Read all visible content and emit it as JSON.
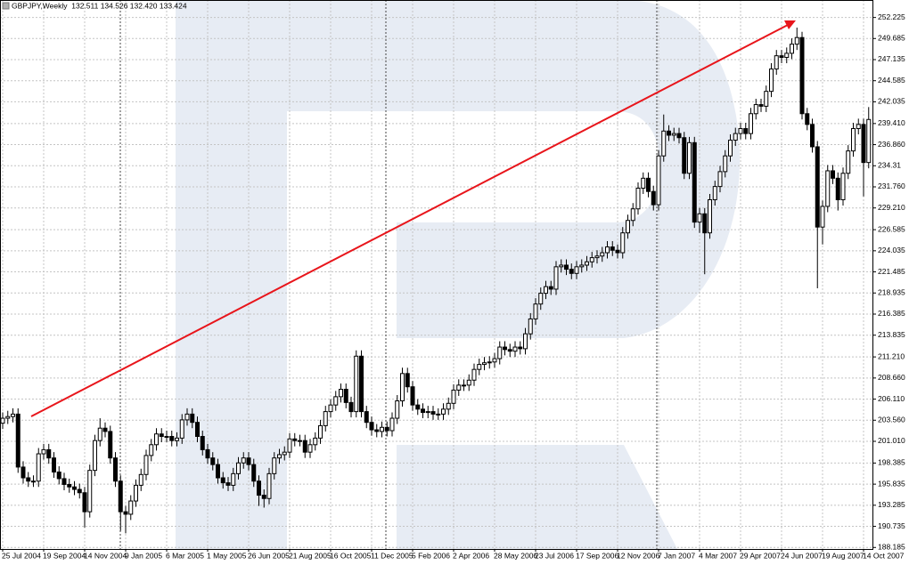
{
  "chart_data": {
    "type": "candlestick",
    "title": "GBPJPY,Weekly  132.511 134.526 132.420 133.424",
    "categories": [
      "25 Jul 2004",
      null,
      null,
      null,
      null,
      null,
      null,
      null,
      "19 Sep 2004",
      null,
      null,
      null,
      null,
      null,
      null,
      null,
      "14 Nov 2004",
      null,
      null,
      null,
      null,
      null,
      null,
      null,
      "9 Jan 2005",
      null,
      null,
      null,
      null,
      null,
      null,
      null,
      "6 Mar 2005",
      null,
      null,
      null,
      null,
      null,
      null,
      null,
      "1 May 2005",
      null,
      null,
      null,
      null,
      null,
      null,
      null,
      "26 Jun 2005",
      null,
      null,
      null,
      null,
      null,
      null,
      null,
      "21 Aug 2005",
      null,
      null,
      null,
      null,
      null,
      null,
      null,
      "16 Oct 2005",
      null,
      null,
      null,
      null,
      null,
      null,
      null,
      "11 Dec 2005",
      null,
      null,
      null,
      null,
      null,
      null,
      null,
      "5 Feb 2006",
      null,
      null,
      null,
      null,
      null,
      null,
      null,
      "2 Apr 2006",
      null,
      null,
      null,
      null,
      null,
      null,
      null,
      "28 May 2006",
      null,
      null,
      null,
      null,
      null,
      null,
      null,
      "23 Jul 2006",
      null,
      null,
      null,
      null,
      null,
      null,
      null,
      "17 Sep 2006",
      null,
      null,
      null,
      null,
      null,
      null,
      null,
      "12 Nov 2006",
      null,
      null,
      null,
      null,
      null,
      null,
      null,
      "7 Jan 2007",
      null,
      null,
      null,
      null,
      null,
      null,
      null,
      "4 Mar 2007",
      null,
      null,
      null,
      null,
      null,
      null,
      null,
      "29 Apr 2007",
      null,
      null,
      null,
      null,
      null,
      null,
      null,
      "24 Jun 2007",
      null,
      null,
      null,
      null,
      null,
      null,
      null,
      "19 Aug 2007",
      null,
      null,
      null,
      null,
      null,
      null,
      null,
      "14 Oct 2007",
      null
    ],
    "open": [
      203.2,
      203.8,
      204.0,
      204.3,
      197.9,
      196.6,
      196.2,
      196.2,
      199.5,
      200.0,
      199.0,
      197.3,
      196.5,
      195.8,
      195.5,
      195.2,
      194.8,
      192.5,
      197.5,
      201.1,
      202.6,
      202.2,
      199.0,
      196.2,
      192.5,
      192.2,
      193.8,
      195.7,
      197.0,
      199.3,
      200.6,
      201.9,
      201.6,
      201.6,
      201.1,
      201.4,
      203.6,
      204.3,
      203.3,
      201.6,
      200.0,
      199.0,
      198.2,
      196.6,
      196.0,
      195.7,
      197.1,
      198.4,
      199.0,
      198.2,
      196.2,
      194.5,
      194.1,
      197.1,
      199.0,
      199.4,
      199.7,
      201.3,
      201.1,
      201.1,
      199.7,
      200.6,
      201.4,
      202.9,
      204.6,
      205.4,
      206.4,
      207.3,
      205.7,
      204.6,
      211.3,
      204.6,
      203.3,
      202.4,
      202.2,
      202.7,
      202.3,
      203.8,
      205.9,
      209.2,
      207.6,
      205.4,
      204.9,
      204.5,
      204.6,
      204.3,
      204.3,
      204.9,
      205.6,
      207.2,
      207.8,
      207.8,
      208.4,
      209.7,
      210.3,
      210.5,
      210.6,
      211.0,
      212.4,
      212.1,
      211.9,
      212.4,
      212.2,
      214.0,
      215.8,
      217.6,
      218.9,
      219.7,
      219.4,
      222.1,
      222.3,
      221.8,
      221.3,
      222.1,
      222.3,
      222.7,
      223.2,
      223.4,
      223.8,
      224.5,
      224.1,
      223.8,
      226.2,
      227.7,
      229.1,
      231.6,
      232.8,
      231.2,
      229.6,
      235.5,
      238.5,
      238.0,
      238.2,
      237.7,
      233.4,
      237.1,
      227.5,
      228.5,
      226.2,
      230.2,
      231.8,
      233.6,
      235.5,
      237.4,
      238.2,
      238.8,
      238.2,
      240.6,
      241.7,
      241.5,
      243.3,
      246.0,
      247.6,
      247.4,
      247.9,
      249.0,
      249.8,
      240.6,
      239.3,
      236.6,
      226.9,
      229.4,
      233.7,
      232.8,
      230.2,
      233.4,
      236.1,
      238.8,
      239.3,
      234.7
    ],
    "high": [
      204.5,
      204.7,
      205.0,
      205.0,
      198.6,
      197.3,
      196.9,
      200.2,
      200.7,
      200.7,
      199.7,
      198.0,
      197.2,
      196.5,
      196.2,
      195.9,
      195.5,
      198.2,
      201.8,
      203.8,
      203.3,
      202.9,
      199.7,
      196.9,
      193.2,
      194.5,
      196.4,
      197.7,
      200.0,
      201.3,
      202.6,
      202.6,
      202.3,
      202.3,
      202.1,
      204.3,
      205.0,
      205.0,
      204.0,
      202.3,
      200.7,
      199.7,
      198.9,
      197.3,
      196.7,
      197.8,
      199.1,
      199.7,
      199.7,
      198.9,
      196.9,
      195.2,
      197.8,
      199.7,
      200.1,
      200.4,
      202.0,
      202.0,
      201.8,
      201.8,
      201.3,
      202.1,
      203.6,
      205.3,
      206.1,
      207.1,
      208.0,
      208.0,
      206.4,
      212.0,
      212.0,
      205.3,
      204.0,
      203.1,
      203.4,
      203.4,
      204.5,
      206.6,
      209.9,
      209.9,
      208.3,
      206.1,
      205.6,
      205.3,
      205.3,
      205.0,
      205.6,
      206.3,
      207.9,
      208.5,
      208.5,
      209.1,
      210.4,
      211.0,
      211.2,
      211.3,
      211.7,
      213.1,
      213.1,
      212.8,
      213.1,
      213.1,
      214.7,
      216.5,
      218.3,
      219.6,
      220.4,
      220.4,
      222.8,
      223.0,
      223.0,
      222.5,
      222.8,
      223.0,
      223.4,
      223.9,
      224.1,
      224.5,
      225.2,
      225.2,
      224.8,
      226.9,
      228.4,
      229.8,
      232.3,
      233.5,
      233.5,
      231.9,
      236.2,
      240.5,
      239.2,
      238.9,
      238.9,
      238.4,
      237.8,
      237.8,
      229.2,
      229.2,
      230.9,
      232.5,
      234.3,
      236.2,
      238.1,
      238.9,
      239.5,
      239.5,
      241.3,
      242.4,
      242.4,
      244.0,
      246.7,
      248.3,
      248.3,
      248.6,
      249.7,
      251.0,
      250.5,
      241.3,
      240.0,
      237.3,
      230.1,
      234.4,
      234.4,
      233.5,
      234.1,
      236.8,
      239.5,
      240.0,
      240.0,
      241.4
    ],
    "low": [
      202.5,
      203.1,
      203.3,
      197.2,
      195.9,
      195.5,
      195.5,
      195.5,
      198.8,
      198.3,
      196.6,
      195.8,
      195.1,
      194.8,
      194.5,
      194.1,
      190.6,
      191.8,
      196.8,
      200.4,
      201.5,
      198.3,
      195.5,
      190.2,
      189.9,
      191.5,
      193.1,
      195.0,
      196.3,
      198.6,
      199.9,
      200.9,
      200.9,
      200.4,
      200.4,
      200.7,
      202.9,
      202.6,
      200.9,
      199.3,
      198.3,
      197.5,
      195.9,
      195.3,
      195.0,
      195.0,
      196.4,
      197.7,
      197.5,
      195.5,
      193.2,
      193.0,
      193.4,
      196.4,
      198.3,
      198.7,
      199.0,
      200.4,
      200.4,
      199.0,
      199.0,
      199.9,
      200.7,
      202.2,
      203.9,
      204.7,
      205.7,
      205.0,
      203.9,
      203.9,
      203.9,
      202.6,
      201.7,
      201.5,
      201.5,
      201.6,
      201.6,
      203.1,
      205.2,
      206.9,
      204.7,
      204.2,
      203.8,
      203.8,
      203.6,
      203.6,
      203.6,
      204.2,
      204.9,
      206.5,
      207.1,
      207.1,
      207.7,
      209.0,
      209.6,
      209.8,
      209.9,
      210.3,
      211.4,
      211.2,
      211.2,
      211.5,
      211.5,
      213.3,
      215.1,
      216.9,
      218.2,
      218.7,
      218.7,
      221.4,
      221.1,
      220.6,
      220.6,
      221.4,
      221.6,
      222.0,
      222.5,
      222.7,
      223.1,
      223.4,
      223.1,
      223.1,
      225.5,
      227.0,
      228.4,
      230.9,
      230.5,
      228.9,
      228.9,
      234.8,
      237.3,
      237.3,
      237.0,
      232.7,
      232.7,
      226.8,
      226.2,
      221.2,
      225.5,
      229.5,
      231.1,
      232.9,
      234.8,
      236.7,
      237.5,
      237.5,
      237.5,
      239.9,
      240.8,
      240.8,
      242.6,
      245.3,
      246.7,
      246.7,
      247.2,
      248.3,
      239.9,
      238.6,
      235.9,
      219.5,
      224.8,
      228.7,
      232.1,
      228.9,
      229.5,
      232.7,
      235.4,
      238.1,
      230.6,
      234.0
    ],
    "close": [
      203.8,
      204.0,
      204.3,
      197.9,
      196.6,
      196.2,
      196.2,
      199.5,
      200.0,
      199.0,
      197.3,
      196.5,
      195.8,
      195.5,
      195.2,
      194.8,
      192.5,
      197.5,
      201.1,
      202.6,
      202.2,
      199.0,
      196.2,
      192.5,
      192.2,
      193.8,
      195.7,
      197.0,
      199.3,
      200.6,
      201.9,
      201.6,
      201.6,
      201.1,
      201.4,
      203.6,
      204.3,
      203.3,
      201.6,
      200.0,
      199.0,
      198.2,
      196.6,
      196.0,
      195.7,
      197.1,
      198.4,
      199.0,
      198.2,
      196.2,
      194.5,
      194.1,
      197.1,
      199.0,
      199.4,
      199.7,
      201.3,
      201.1,
      201.1,
      199.7,
      200.6,
      201.4,
      202.9,
      204.6,
      205.4,
      206.4,
      207.3,
      205.7,
      204.6,
      211.3,
      204.6,
      203.3,
      202.4,
      202.2,
      202.7,
      202.3,
      203.8,
      205.9,
      209.2,
      207.6,
      205.4,
      204.9,
      204.5,
      204.6,
      204.3,
      204.3,
      204.9,
      205.6,
      207.2,
      207.8,
      207.8,
      208.4,
      209.7,
      210.3,
      210.5,
      210.6,
      211.0,
      212.4,
      212.1,
      211.9,
      212.4,
      212.2,
      214.0,
      215.8,
      217.6,
      218.9,
      219.7,
      219.4,
      222.1,
      222.3,
      221.8,
      221.3,
      222.1,
      222.3,
      222.7,
      223.2,
      223.4,
      223.8,
      224.5,
      224.1,
      223.8,
      226.2,
      227.7,
      229.1,
      231.6,
      232.8,
      231.2,
      229.6,
      235.5,
      238.5,
      238.0,
      238.2,
      237.7,
      233.4,
      237.1,
      227.5,
      228.5,
      226.2,
      230.2,
      231.8,
      233.6,
      235.5,
      237.4,
      238.2,
      238.8,
      238.2,
      240.6,
      241.7,
      241.5,
      243.3,
      246.0,
      247.6,
      247.4,
      247.9,
      249.0,
      249.8,
      240.6,
      239.3,
      236.6,
      226.9,
      229.4,
      233.7,
      232.8,
      230.2,
      233.4,
      236.1,
      238.8,
      239.3,
      234.7,
      239.9
    ],
    "ylim": [
      188.0,
      253.8
    ],
    "yticks": [
      252.225,
      249.685,
      247.135,
      244.585,
      242.035,
      {
        "value": 239.41,
        "label": "239.410"
      },
      {
        "value": 236.86,
        "label": "236.860"
      },
      234.31,
      {
        "value": 231.76,
        "label": "231.760"
      },
      {
        "value": 229.21,
        "label": "229.210"
      },
      226.585,
      224.035,
      221.485,
      218.935,
      216.385,
      213.835,
      {
        "value": 211.21,
        "label": "211.210"
      },
      {
        "value": 208.66,
        "label": "208.660"
      },
      {
        "value": 206.11,
        "label": "206.110"
      },
      {
        "value": 203.56,
        "label": "203.560"
      },
      {
        "value": 201.01,
        "label": "201.010"
      },
      198.385,
      195.835,
      193.285,
      190.735,
      188.185
    ],
    "grid": true,
    "up_color": "#ffffff",
    "down_color": "#000000"
  }
}
